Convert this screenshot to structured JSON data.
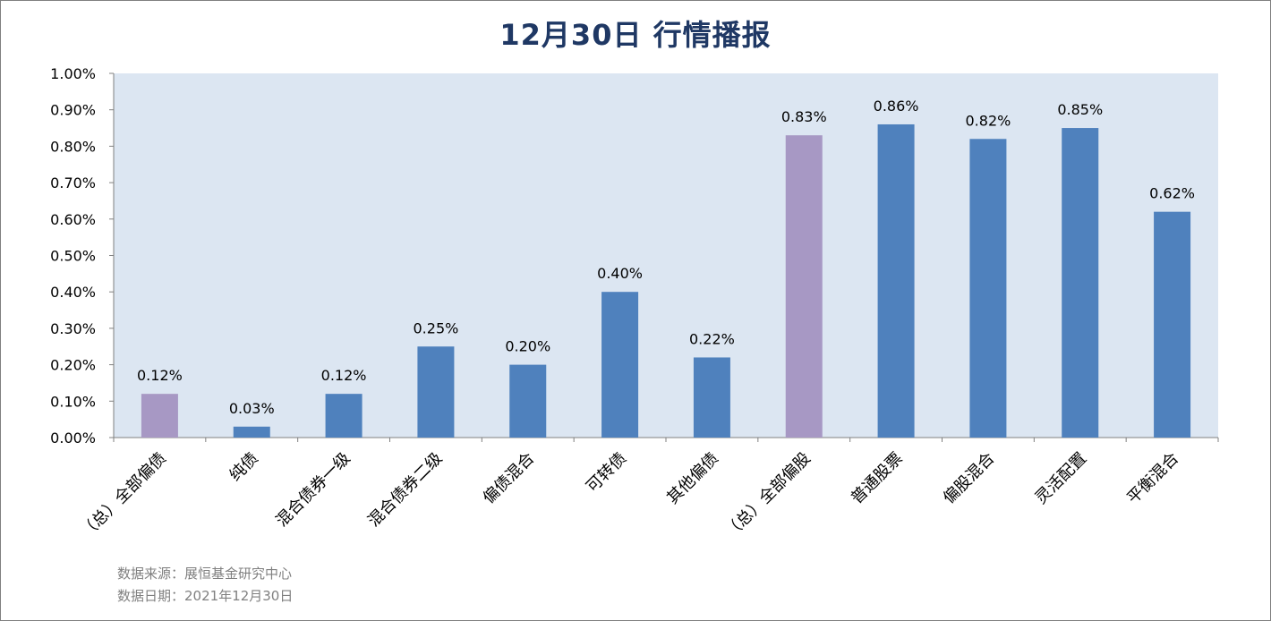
{
  "title": "12月30日  行情播报",
  "footer": {
    "source": "数据来源：展恒基金研究中心",
    "date": "数据日期：2021年12月30日"
  },
  "colors": {
    "plot_bg": "#dce6f2",
    "bar_blue": "#4f81bd",
    "bar_purple": "#a798c4",
    "title": "#1f3864"
  },
  "chart_data": {
    "type": "bar",
    "categories": [
      "（总）全部偏债",
      "纯债",
      "混合债券一级",
      "混合债券二级",
      "偏债混合",
      "可转债",
      "其他偏债",
      "（总）全部偏股",
      "普通股票",
      "偏股混合",
      "灵活配置",
      "平衡混合"
    ],
    "values": [
      0.12,
      0.03,
      0.12,
      0.25,
      0.2,
      0.4,
      0.22,
      0.83,
      0.86,
      0.82,
      0.85,
      0.62
    ],
    "value_labels": [
      "0.12%",
      "0.03%",
      "0.12%",
      "0.25%",
      "0.20%",
      "0.40%",
      "0.22%",
      "0.83%",
      "0.86%",
      "0.82%",
      "0.85%",
      "0.62%"
    ],
    "highlight": [
      true,
      false,
      false,
      false,
      false,
      false,
      false,
      true,
      false,
      false,
      false,
      false
    ],
    "ylim": [
      0,
      1.0
    ],
    "yticks": [
      0,
      0.1,
      0.2,
      0.3,
      0.4,
      0.5,
      0.6,
      0.7,
      0.8,
      0.9,
      1.0
    ],
    "ytick_labels": [
      "0.00%",
      "0.10%",
      "0.20%",
      "0.30%",
      "0.40%",
      "0.50%",
      "0.60%",
      "0.70%",
      "0.80%",
      "0.90%",
      "1.00%"
    ],
    "grid": false,
    "legend": "none"
  }
}
